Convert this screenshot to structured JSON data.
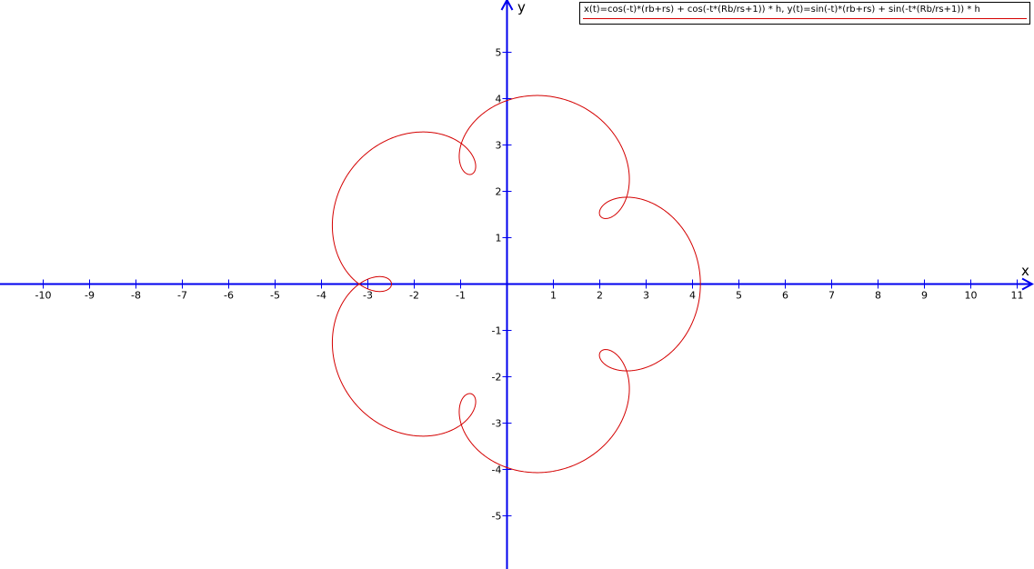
{
  "chart_data": {
    "type": "line",
    "xlabel": "x",
    "ylabel": "y",
    "xlim": [
      -11,
      11.4
    ],
    "ylim": [
      -6.1,
      6.1
    ],
    "xticks": [
      -10,
      -9,
      -8,
      -7,
      -6,
      -5,
      -4,
      -3,
      -2,
      -1,
      1,
      2,
      3,
      4,
      5,
      6,
      7,
      8,
      9,
      10,
      11
    ],
    "yticks": [
      -5,
      -4,
      -3,
      -2,
      -1,
      1,
      2,
      3,
      4,
      5
    ],
    "grid": false,
    "legend_position": "top-right",
    "series": [
      {
        "name": "x(t)=cos(-t)*(rb+rs) + cos(-t*(Rb/rs+1)) * h, y(t)=sin(-t)*(rb+rs) + sin(-t*(Rb/rs+1)) * h",
        "color": "#d40000",
        "parametric": {
          "rb_plus_rs": 3.33,
          "h": 0.84,
          "freq_ratio": 6,
          "t_range": [
            0,
            6.2832
          ]
        },
        "cusps": [
          {
            "x": -3.06,
            "y": 0
          },
          {
            "x": -0.97,
            "y": 2.87
          },
          {
            "x": 2.47,
            "y": 1.77
          },
          {
            "x": 2.47,
            "y": -1.77
          },
          {
            "x": -0.97,
            "y": -2.87
          }
        ],
        "extremes": {
          "x_min": -3.06,
          "x_max": 4.17,
          "y_min": -4.1,
          "y_max": 4.1
        }
      }
    ]
  },
  "colors": {
    "axis": "#0000ee",
    "curve": "#d40000",
    "text": "#000000"
  }
}
